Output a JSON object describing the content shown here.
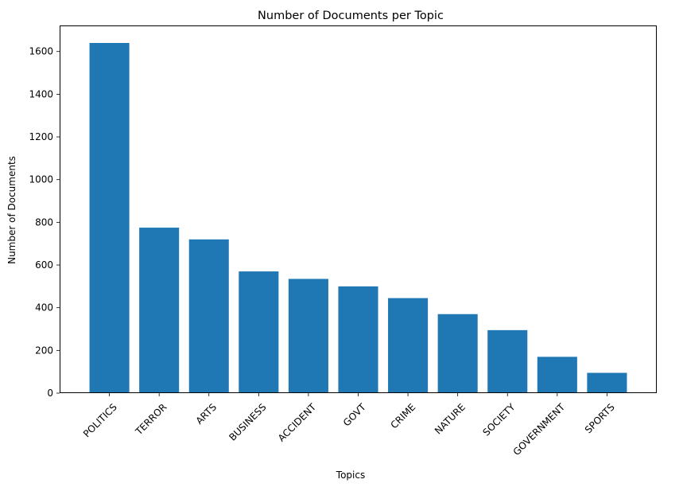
{
  "chart_data": {
    "type": "bar",
    "title": "Number of Documents per Topic",
    "xlabel": "Topics",
    "ylabel": "Number of Documents",
    "categories": [
      "POLITICS",
      "TERROR",
      "ARTS",
      "BUSINESS",
      "ACCIDENT",
      "GOVT",
      "CRIME",
      "NATURE",
      "SOCIETY",
      "GOVERNMENT",
      "SPORTS"
    ],
    "values": [
      1640,
      775,
      720,
      570,
      535,
      500,
      445,
      370,
      295,
      170,
      95
    ],
    "ylim": [
      0,
      1722
    ],
    "yticks": [
      0,
      200,
      400,
      600,
      800,
      1000,
      1200,
      1400,
      1600
    ],
    "grid": false,
    "bar_color": "#1f77b4"
  }
}
